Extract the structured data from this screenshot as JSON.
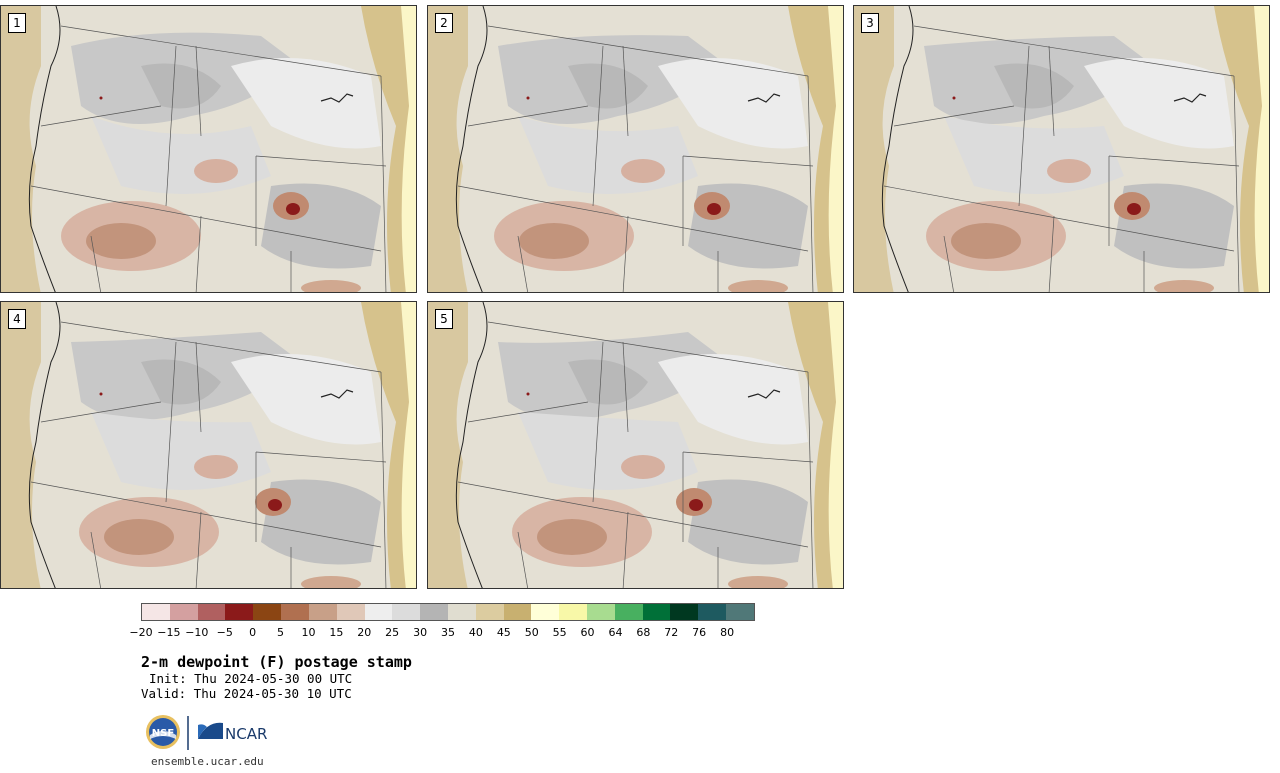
{
  "panels": [
    {
      "label": "1"
    },
    {
      "label": "2"
    },
    {
      "label": "3"
    },
    {
      "label": "4"
    },
    {
      "label": "5"
    }
  ],
  "colorbar": {
    "colors": [
      "#f5e6e6",
      "#d4a0a0",
      "#b06060",
      "#8b1a1a",
      "#8b4513",
      "#b07050",
      "#c8a088",
      "#e0c8b8",
      "#eeeeee",
      "#dcdcdc",
      "#b4b4b4",
      "#e0ddd0",
      "#dccca0",
      "#c8b070",
      "#ffffd8",
      "#f8f8a8",
      "#a8dc90",
      "#48b060",
      "#007038",
      "#003820",
      "#1e5a60",
      "#507878"
    ],
    "ticks": [
      "−20",
      "−15",
      "−10",
      "−5",
      "0",
      "5",
      "10",
      "15",
      "20",
      "25",
      "30",
      "35",
      "40",
      "45",
      "50",
      "55",
      "60",
      "64",
      "68",
      "72",
      "76",
      "80"
    ]
  },
  "title": "2-m dewpoint (F) postage stamp",
  "init": "Init: Thu 2024-05-30 00 UTC",
  "valid": "Valid: Thu 2024-05-30 10 UTC",
  "logos": {
    "nsf": "NSF",
    "ncar": "NCAR"
  },
  "footer": "ensemble.ucar.edu"
}
